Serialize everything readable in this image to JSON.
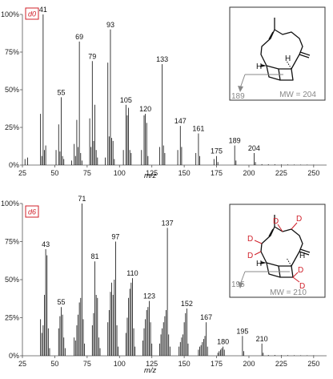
{
  "chart_data": [
    {
      "type": "bar",
      "subtitle": "d0",
      "xlabel": "m/z",
      "ylabel": "",
      "xlim": [
        25,
        260
      ],
      "ylim": [
        0,
        100
      ],
      "xticks": [
        25,
        50,
        75,
        100,
        125,
        150,
        175,
        200,
        225,
        250
      ],
      "yticks": [
        "0%",
        "25%",
        "50%",
        "75%",
        "100%"
      ],
      "peaks": [
        [
          27,
          4
        ],
        [
          29,
          5
        ],
        [
          39,
          34
        ],
        [
          40,
          6
        ],
        [
          41,
          100
        ],
        [
          42,
          10
        ],
        [
          43,
          13
        ],
        [
          51,
          10
        ],
        [
          53,
          27
        ],
        [
          54,
          9
        ],
        [
          55,
          45
        ],
        [
          56,
          6
        ],
        [
          57,
          4
        ],
        [
          63,
          3
        ],
        [
          65,
          14
        ],
        [
          66,
          6
        ],
        [
          67,
          30
        ],
        [
          68,
          12
        ],
        [
          69,
          82
        ],
        [
          70,
          8
        ],
        [
          71,
          3
        ],
        [
          77,
          31
        ],
        [
          78,
          12
        ],
        [
          79,
          69
        ],
        [
          80,
          16
        ],
        [
          81,
          40
        ],
        [
          82,
          10
        ],
        [
          83,
          5
        ],
        [
          89,
          5
        ],
        [
          91,
          68
        ],
        [
          92,
          19
        ],
        [
          93,
          90
        ],
        [
          94,
          18
        ],
        [
          95,
          16
        ],
        [
          96,
          4
        ],
        [
          103,
          10
        ],
        [
          105,
          40
        ],
        [
          106,
          33
        ],
        [
          107,
          38
        ],
        [
          108,
          10
        ],
        [
          109,
          8
        ],
        [
          117,
          10
        ],
        [
          119,
          33
        ],
        [
          120,
          34
        ],
        [
          121,
          28
        ],
        [
          122,
          6
        ],
        [
          131,
          12
        ],
        [
          133,
          67
        ],
        [
          134,
          13
        ],
        [
          135,
          8
        ],
        [
          145,
          10
        ],
        [
          147,
          26
        ],
        [
          148,
          12
        ],
        [
          159,
          8
        ],
        [
          161,
          21
        ],
        [
          162,
          6
        ],
        [
          173,
          4
        ],
        [
          175,
          6
        ],
        [
          176,
          2
        ],
        [
          189,
          13
        ],
        [
          190,
          3
        ],
        [
          204,
          8
        ],
        [
          205,
          2
        ],
        [
          210,
          0.6
        ],
        [
          215,
          0.5
        ],
        [
          220,
          0.5
        ],
        [
          225,
          0.4
        ],
        [
          230,
          0.4
        ],
        [
          235,
          0.3
        ],
        [
          240,
          0.3
        ],
        [
          245,
          0.3
        ],
        [
          250,
          0.3
        ]
      ],
      "labels": [
        {
          "mz": 41,
          "y": 100,
          "text": "41",
          "color": "#111111"
        },
        {
          "mz": 55,
          "y": 45,
          "text": "55",
          "color": "#111111"
        },
        {
          "mz": 69,
          "y": 82,
          "text": "69",
          "color": "#111111"
        },
        {
          "mz": 79,
          "y": 69,
          "text": "79",
          "color": "#111111"
        },
        {
          "mz": 93,
          "y": 90,
          "text": "93",
          "color": "#111111"
        },
        {
          "mz": 105,
          "y": 40,
          "text": "105",
          "color": "#111111"
        },
        {
          "mz": 120,
          "y": 34,
          "text": "120",
          "color": "#111111"
        },
        {
          "mz": 133,
          "y": 67,
          "text": "133",
          "color": "#111111"
        },
        {
          "mz": 147,
          "y": 26,
          "text": "147",
          "color": "#111111"
        },
        {
          "mz": 161,
          "y": 21,
          "text": "161",
          "color": "#111111"
        },
        {
          "mz": 175,
          "y": 6,
          "text": "175",
          "color": "#111111"
        },
        {
          "mz": 189,
          "y": 13,
          "text": "189",
          "color": "#1a2bd0"
        },
        {
          "mz": 204,
          "y": 8,
          "text": "204",
          "color": "#d0202a"
        }
      ],
      "inset": {
        "fragment_label": "189",
        "mw_label": "MW = 204"
      }
    },
    {
      "type": "bar",
      "subtitle": "d6",
      "xlabel": "m/z",
      "ylabel": "",
      "xlim": [
        25,
        260
      ],
      "ylim": [
        0,
        100
      ],
      "xticks": [
        25,
        50,
        75,
        100,
        125,
        150,
        175,
        200,
        225,
        250
      ],
      "yticks": [
        "0%",
        "25%",
        "50%",
        "75%",
        "100%"
      ],
      "peaks": [
        [
          39,
          24
        ],
        [
          40,
          15
        ],
        [
          41,
          20
        ],
        [
          42,
          40
        ],
        [
          43,
          70
        ],
        [
          44,
          66
        ],
        [
          45,
          18
        ],
        [
          46,
          5
        ],
        [
          53,
          18
        ],
        [
          54,
          26
        ],
        [
          55,
          32
        ],
        [
          56,
          27
        ],
        [
          57,
          12
        ],
        [
          58,
          5
        ],
        [
          65,
          12
        ],
        [
          66,
          10
        ],
        [
          67,
          20
        ],
        [
          68,
          27
        ],
        [
          69,
          35
        ],
        [
          70,
          38
        ],
        [
          71,
          100
        ],
        [
          72,
          24
        ],
        [
          73,
          8
        ],
        [
          79,
          20
        ],
        [
          80,
          28
        ],
        [
          81,
          62
        ],
        [
          82,
          40
        ],
        [
          83,
          38
        ],
        [
          84,
          12
        ],
        [
          85,
          5
        ],
        [
          91,
          22
        ],
        [
          92,
          30
        ],
        [
          93,
          42
        ],
        [
          94,
          48
        ],
        [
          95,
          40
        ],
        [
          96,
          50
        ],
        [
          97,
          75
        ],
        [
          98,
          20
        ],
        [
          99,
          6
        ],
        [
          105,
          15
        ],
        [
          106,
          25
        ],
        [
          107,
          38
        ],
        [
          108,
          44
        ],
        [
          109,
          48
        ],
        [
          110,
          51
        ],
        [
          111,
          18
        ],
        [
          112,
          6
        ],
        [
          118,
          10
        ],
        [
          119,
          18
        ],
        [
          120,
          24
        ],
        [
          121,
          30
        ],
        [
          122,
          32
        ],
        [
          123,
          36
        ],
        [
          124,
          22
        ],
        [
          125,
          8
        ],
        [
          131,
          8
        ],
        [
          132,
          14
        ],
        [
          133,
          18
        ],
        [
          134,
          22
        ],
        [
          135,
          26
        ],
        [
          136,
          30
        ],
        [
          137,
          84
        ],
        [
          138,
          14
        ],
        [
          139,
          6
        ],
        [
          146,
          6
        ],
        [
          147,
          9
        ],
        [
          148,
          12
        ],
        [
          149,
          14
        ],
        [
          150,
          22
        ],
        [
          151,
          28
        ],
        [
          152,
          31
        ],
        [
          153,
          8
        ],
        [
          161,
          4
        ],
        [
          162,
          6
        ],
        [
          163,
          7
        ],
        [
          164,
          9
        ],
        [
          165,
          11
        ],
        [
          166,
          13
        ],
        [
          167,
          22
        ],
        [
          168,
          6
        ],
        [
          176,
          2
        ],
        [
          177,
          3
        ],
        [
          178,
          4
        ],
        [
          179,
          5
        ],
        [
          180,
          6
        ],
        [
          181,
          4
        ],
        [
          195,
          13
        ],
        [
          196,
          3
        ],
        [
          210,
          8
        ],
        [
          211,
          2
        ],
        [
          215,
          0.5
        ],
        [
          220,
          0.5
        ],
        [
          225,
          0.4
        ],
        [
          230,
          0.4
        ],
        [
          235,
          0.3
        ],
        [
          240,
          0.3
        ],
        [
          245,
          0.3
        ],
        [
          250,
          0.3
        ]
      ],
      "labels": [
        {
          "mz": 43,
          "y": 70,
          "text": "43",
          "color": "#111111"
        },
        {
          "mz": 55,
          "y": 32,
          "text": "55",
          "color": "#111111"
        },
        {
          "mz": 71,
          "y": 100,
          "text": "71",
          "color": "#111111"
        },
        {
          "mz": 81,
          "y": 62,
          "text": "81",
          "color": "#111111"
        },
        {
          "mz": 97,
          "y": 75,
          "text": "97",
          "color": "#111111"
        },
        {
          "mz": 110,
          "y": 51,
          "text": "110",
          "color": "#111111"
        },
        {
          "mz": 123,
          "y": 36,
          "text": "123",
          "color": "#111111"
        },
        {
          "mz": 137,
          "y": 84,
          "text": "137",
          "color": "#111111"
        },
        {
          "mz": 152,
          "y": 31,
          "text": "152",
          "color": "#111111"
        },
        {
          "mz": 167,
          "y": 22,
          "text": "167",
          "color": "#111111"
        },
        {
          "mz": 180,
          "y": 6,
          "text": "180",
          "color": "#111111"
        },
        {
          "mz": 195,
          "y": 13,
          "text": "195",
          "color": "#1a2bd0"
        },
        {
          "mz": 210,
          "y": 8,
          "text": "210",
          "color": "#d0202a"
        }
      ],
      "inset": {
        "fragment_label": "195",
        "mw_label": "MW = 210",
        "deuterium_label": "D",
        "hydrogen_label": "H"
      }
    }
  ]
}
